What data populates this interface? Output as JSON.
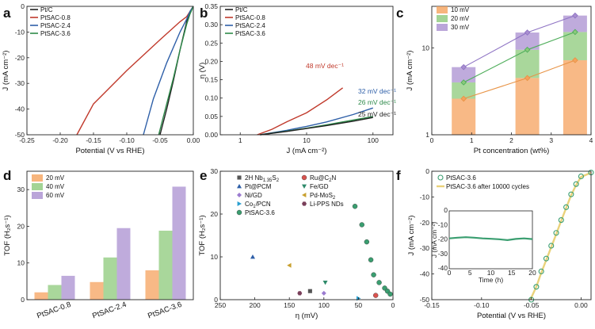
{
  "colors": {
    "ptc": "#222222",
    "s08": "#c0392b",
    "s24": "#2e5fa8",
    "s36": "#2e8a4a",
    "orange": "#f5a25d",
    "green": "#8cc97a",
    "purple": "#a98fd0",
    "mk10": "#e89447",
    "mk20": "#4fae5b",
    "mk30": "#8f74c4",
    "stabA": "#3a9e70",
    "stabB": "#ead27a"
  },
  "chart_data": [
    {
      "panel": "a",
      "type": "line",
      "xlabel": "Potential (V vs RHE)",
      "ylabel": "J (mA cm⁻²)",
      "xlim": [
        -0.25,
        0.0
      ],
      "ylim": [
        -50,
        0
      ],
      "xticks": [
        "-0.25",
        "-0.20",
        "-0.15",
        "-0.10",
        "-0.05",
        "0.00"
      ],
      "xtickvals": [
        -0.25,
        -0.2,
        -0.15,
        -0.1,
        -0.05,
        0.0
      ],
      "yticks": [
        "0",
        "-10",
        "-20",
        "-30",
        "-40",
        "-50"
      ],
      "ytickvals": [
        0,
        -10,
        -20,
        -30,
        -40,
        -50
      ],
      "legend": [
        "Pt/C",
        "PtSAC-0.8",
        "PtSAC-2.4",
        "PtSAC-3.6"
      ],
      "series": [
        {
          "name": "Pt/C",
          "color": "ptc",
          "x": [
            0.0,
            -0.005,
            -0.01,
            -0.02,
            -0.03,
            -0.04,
            -0.05
          ],
          "y": [
            0,
            -2,
            -6,
            -17,
            -29,
            -40,
            -50
          ]
        },
        {
          "name": "PtSAC-0.8",
          "color": "s08",
          "x": [
            0.0,
            -0.005,
            -0.01,
            -0.02,
            -0.05,
            -0.1,
            -0.15,
            -0.175
          ],
          "y": [
            0,
            -2,
            -4,
            -6,
            -13,
            -25,
            -38,
            -50
          ]
        },
        {
          "name": "PtSAC-2.4",
          "color": "s24",
          "x": [
            0.0,
            -0.005,
            -0.01,
            -0.02,
            -0.04,
            -0.06,
            -0.075
          ],
          "y": [
            0,
            -2,
            -5,
            -10,
            -22,
            -36,
            -50
          ]
        },
        {
          "name": "PtSAC-3.6",
          "color": "s36",
          "x": [
            0.0,
            -0.005,
            -0.01,
            -0.02,
            -0.03,
            -0.04,
            -0.052
          ],
          "y": [
            0,
            -3,
            -7,
            -17,
            -28,
            -38,
            -50
          ]
        }
      ]
    },
    {
      "panel": "b",
      "type": "line",
      "xlabel": "J (mA cm⁻²)",
      "ylabel": "η (V)",
      "xscale": "log",
      "xlim": [
        0.5,
        200
      ],
      "ylim": [
        0,
        0.35
      ],
      "xticks": [
        "1",
        "10",
        "100"
      ],
      "xtickvals": [
        1,
        10,
        100
      ],
      "yticks": [
        "0.00",
        "0.05",
        "0.10",
        "0.15",
        "0.20",
        "0.25",
        "0.30",
        "0.35"
      ],
      "ytickvals": [
        0,
        0.05,
        0.1,
        0.15,
        0.2,
        0.25,
        0.3,
        0.35
      ],
      "legend": [
        "Pt/C",
        "PtSAC-0.8",
        "PtSAC-2.4",
        "PtSAC-3.6"
      ],
      "annotations": [
        {
          "text": "48 mV dec⁻¹",
          "color": "s08"
        },
        {
          "text": "32 mV dec⁻¹",
          "color": "s24"
        },
        {
          "text": "26 mV dec⁻¹",
          "color": "s36"
        },
        {
          "text": "25 mV dec⁻¹",
          "color": "ptc"
        }
      ],
      "series": [
        {
          "name": "PtSAC-0.8",
          "color": "s08",
          "x": [
            1.8,
            3,
            5,
            10,
            20,
            35
          ],
          "y": [
            0.0,
            0.015,
            0.035,
            0.06,
            0.095,
            0.128
          ]
        },
        {
          "name": "PtSAC-2.4",
          "color": "s24",
          "x": [
            2,
            5,
            10,
            20,
            50,
            100
          ],
          "y": [
            0.0,
            0.012,
            0.023,
            0.035,
            0.055,
            0.073
          ]
        },
        {
          "name": "PtSAC-3.6",
          "color": "s36",
          "x": [
            2,
            5,
            10,
            20,
            50,
            100
          ],
          "y": [
            0.0,
            0.01,
            0.018,
            0.027,
            0.04,
            0.05
          ]
        },
        {
          "name": "Pt/C",
          "color": "ptc",
          "x": [
            2,
            5,
            10,
            20,
            50,
            100
          ],
          "y": [
            0.0,
            0.009,
            0.017,
            0.025,
            0.037,
            0.047
          ]
        }
      ]
    },
    {
      "panel": "c",
      "type": "bar",
      "xlabel": "Pt concentration (wt%)",
      "ylabel": "J (mA cm⁻²)",
      "yscale": "log",
      "xlim": [
        0,
        4
      ],
      "ylim": [
        1,
        30
      ],
      "xticks": [
        "0",
        "1",
        "2",
        "3",
        "4"
      ],
      "xtickvals": [
        0,
        1,
        2,
        3,
        4
      ],
      "yticks": [
        "1",
        "10"
      ],
      "ytickvals": [
        1,
        10
      ],
      "categories": [
        0.8,
        2.4,
        3.6
      ],
      "series": [
        {
          "name": "10 mV",
          "color": "orange",
          "marker": "mk10",
          "values": [
            2.6,
            4.5,
            7.2
          ]
        },
        {
          "name": "20 mV",
          "color": "green",
          "marker": "mk20",
          "values": [
            4.0,
            9.5,
            15.2
          ]
        },
        {
          "name": "30 mV",
          "color": "purple",
          "marker": "mk30",
          "values": [
            6.0,
            15.0,
            23.5
          ]
        }
      ]
    },
    {
      "panel": "d",
      "type": "bar",
      "xlabel": "",
      "ylabel": "TOF (H₂s⁻¹)",
      "ylim": [
        0,
        35
      ],
      "yticks": [
        "0",
        "10",
        "20",
        "30"
      ],
      "ytickvals": [
        0,
        10,
        20,
        30
      ],
      "categories": [
        "PtSAC-0.8",
        "PtSAC-2.4",
        "PtSAC-3.6"
      ],
      "series": [
        {
          "name": "20 mV",
          "color": "orange",
          "values": [
            2.0,
            4.8,
            8.0
          ]
        },
        {
          "name": "40 mV",
          "color": "green",
          "values": [
            4.0,
            11.5,
            18.8
          ]
        },
        {
          "name": "60 mV",
          "color": "purple",
          "values": [
            6.5,
            19.5,
            30.8
          ]
        }
      ]
    },
    {
      "panel": "e",
      "type": "scatter",
      "xlabel": "η (mV)",
      "ylabel": "TOF (H₂s⁻¹)",
      "xlim": [
        250,
        0
      ],
      "ylim": [
        0,
        30
      ],
      "xticks": [
        "250",
        "200",
        "150",
        "100",
        "50",
        "0"
      ],
      "xtickvals": [
        250,
        200,
        150,
        100,
        50,
        0
      ],
      "yticks": [
        "0",
        "10",
        "20",
        "30"
      ],
      "ytickvals": [
        0,
        10,
        20,
        30
      ],
      "series": [
        {
          "name": "2H Nb",
          "sub": "1.35",
          "tail": "S",
          "sub2": "2",
          "marker": "square",
          "color": "#555555",
          "x": [
            120
          ],
          "y": [
            2.0
          ]
        },
        {
          "name": "Ru@C",
          "sub": "2",
          "tail": "N",
          "sub2": "",
          "marker": "circle",
          "color": "#d9534f",
          "x": [
            25
          ],
          "y": [
            1.0
          ]
        },
        {
          "name": "Pt@PCM",
          "marker": "triangle",
          "color": "#2e5fa8",
          "x": [
            203
          ],
          "y": [
            10.0
          ]
        },
        {
          "name": "Fe/GD",
          "marker": "tri-down",
          "color": "#2e8a6a",
          "x": [
            98
          ],
          "y": [
            4.0
          ]
        },
        {
          "name": "Ni/GD",
          "marker": "diamond",
          "color": "#9b7bd0",
          "x": [
            100
          ],
          "y": [
            1.5
          ]
        },
        {
          "name": "Pd-MoS",
          "sub": "2",
          "tail": "",
          "sub2": "",
          "marker": "tri-left",
          "color": "#c8a02e",
          "x": [
            150
          ],
          "y": [
            8.0
          ]
        },
        {
          "name": "Co",
          "sub": "1",
          "tail": "/PCN",
          "sub2": "",
          "marker": "tri-right",
          "color": "#2a9fd0",
          "x": [
            50
          ],
          "y": [
            0.3
          ]
        },
        {
          "name": "Li-PPS NDs",
          "marker": "hexagon",
          "color": "#7a3f5a",
          "x": [
            135
          ],
          "y": [
            1.5
          ]
        },
        {
          "name": "PtSAC-3.6",
          "marker": "circle",
          "color": "#3a9e70",
          "x": [
            55,
            45,
            38,
            32,
            28,
            20,
            12,
            8,
            4
          ],
          "y": [
            21.8,
            17.5,
            13.5,
            9.3,
            5.8,
            4.0,
            2.7,
            2.0,
            1.3
          ]
        }
      ]
    },
    {
      "panel": "f",
      "type": "line",
      "xlabel": "Potential (V vs RHE)",
      "ylabel": "J (mA cm⁻²)",
      "xlim": [
        -0.15,
        0.01
      ],
      "ylim": [
        -50,
        0
      ],
      "xticks": [
        "-0.15",
        "-0.10",
        "-0.05",
        "0.00"
      ],
      "xtickvals": [
        -0.15,
        -0.1,
        -0.05,
        0.0
      ],
      "yticks": [
        "0",
        "-10",
        "-20",
        "-30",
        "-40",
        "-50"
      ],
      "ytickvals": [
        0,
        -10,
        -20,
        -30,
        -40,
        -50
      ],
      "legend": [
        "PtSAC-3.6",
        "PtSAC-3.6 after 10000 cycles"
      ],
      "series": [
        {
          "name": "PtSAC-3.6",
          "x": [
            0.01,
            0.0,
            -0.005,
            -0.01,
            -0.015,
            -0.02,
            -0.025,
            -0.03,
            -0.035,
            -0.04,
            -0.045,
            -0.05
          ],
          "y": [
            -0.5,
            -2,
            -5,
            -9,
            -14,
            -19,
            -24,
            -29,
            -34,
            -39,
            -45,
            -50
          ]
        },
        {
          "name": "PtSAC-3.6 after 10000 cycles",
          "x": [
            0.01,
            0.0,
            -0.005,
            -0.01,
            -0.015,
            -0.02,
            -0.025,
            -0.03,
            -0.035,
            -0.04,
            -0.045,
            -0.051
          ],
          "y": [
            -0.6,
            -2.2,
            -5.3,
            -9.3,
            -14.3,
            -19.3,
            -24.5,
            -29.5,
            -34.5,
            -39.5,
            -45,
            -50
          ]
        }
      ],
      "inset": {
        "xlabel": "Time (h)",
        "ylabel": "J (mA cm⁻²)",
        "xlim": [
          0,
          20
        ],
        "ylim": [
          -40,
          0
        ],
        "xticks": [
          "0",
          "5",
          "10",
          "15",
          "20"
        ],
        "xtickvals": [
          0,
          5,
          10,
          15,
          20
        ],
        "yticks": [
          "0",
          "-10",
          "-20",
          "-30",
          "-40"
        ],
        "ytickvals": [
          0,
          -10,
          -20,
          -30,
          -40
        ],
        "x": [
          0,
          2,
          4,
          6,
          8,
          10,
          12,
          14,
          16,
          18,
          20
        ],
        "y": [
          -19,
          -18.5,
          -18.2,
          -18.5,
          -19,
          -19.3,
          -19.6,
          -20.2,
          -19.4,
          -19.0,
          -19.5
        ]
      }
    }
  ]
}
